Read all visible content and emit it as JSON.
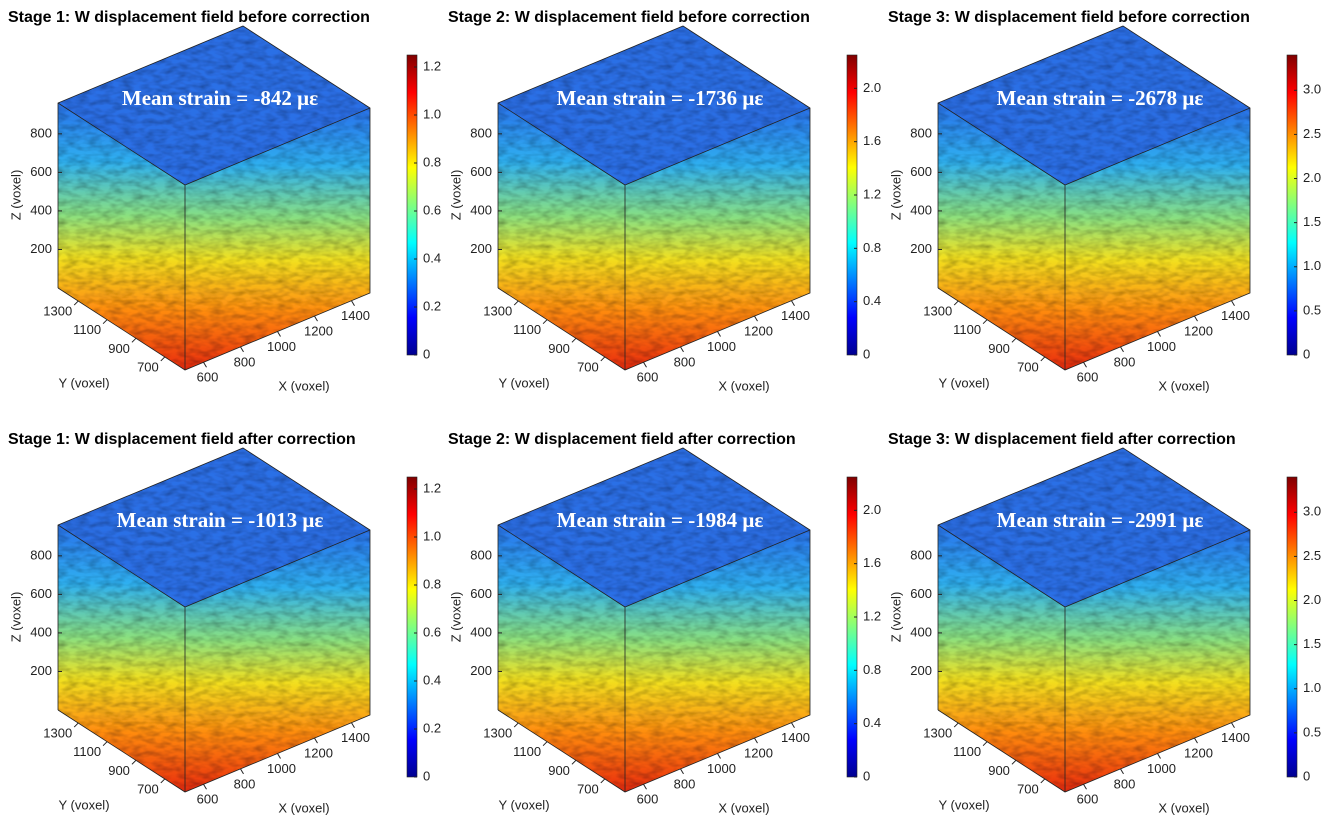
{
  "chart_data": [
    {
      "type": "volume",
      "title": "Stage 1: W displacement field before correction",
      "annotation": "Mean strain = -842 με",
      "xlabel": "X (voxel)",
      "ylabel": "Y (voxel)",
      "zlabel": "Z (voxel)",
      "xlim": [
        500,
        1500
      ],
      "xticks": [
        600,
        800,
        1000,
        1200,
        1400
      ],
      "ylim": [
        560,
        1440
      ],
      "yticks": [
        700,
        900,
        1100,
        1300
      ],
      "zlim": [
        0,
        960
      ],
      "zticks": [
        200,
        400,
        600,
        800
      ],
      "colormap": "jet",
      "clim": [
        0,
        1.25
      ],
      "cticks": [
        0,
        0.2,
        0.4,
        0.6,
        0.8,
        {
          "value": 1,
          "label": "1.0"
        },
        1.2
      ]
    },
    {
      "type": "volume",
      "title": "Stage 2: W displacement field before correction",
      "annotation": "Mean strain = -1736 με",
      "xlabel": "X (voxel)",
      "ylabel": "Y (voxel)",
      "zlabel": "Z (voxel)",
      "xlim": [
        500,
        1500
      ],
      "xticks": [
        600,
        800,
        1000,
        1200,
        1400
      ],
      "ylim": [
        560,
        1440
      ],
      "yticks": [
        700,
        900,
        1100,
        1300
      ],
      "zlim": [
        0,
        960
      ],
      "zticks": [
        200,
        400,
        600,
        800
      ],
      "colormap": "jet",
      "clim": [
        0,
        2.25
      ],
      "cticks": [
        0,
        0.4,
        0.8,
        1.2,
        1.6,
        {
          "value": 2,
          "label": "2.0"
        }
      ]
    },
    {
      "type": "volume",
      "title": "Stage 3: W displacement field before correction",
      "annotation": "Mean strain = -2678 με",
      "xlabel": "X (voxel)",
      "ylabel": "Y (voxel)",
      "zlabel": "Z (voxel)",
      "xlim": [
        500,
        1500
      ],
      "xticks": [
        600,
        800,
        1000,
        1200,
        1400
      ],
      "ylim": [
        560,
        1440
      ],
      "yticks": [
        700,
        900,
        1100,
        1300
      ],
      "zlim": [
        0,
        960
      ],
      "zticks": [
        200,
        400,
        600,
        800
      ],
      "colormap": "jet",
      "clim": [
        0,
        3.4
      ],
      "cticks": [
        0,
        0.5,
        {
          "value": 1,
          "label": "1.0"
        },
        1.5,
        {
          "value": 2,
          "label": "2.0"
        },
        2.5,
        {
          "value": 3,
          "label": "3.0"
        }
      ]
    },
    {
      "type": "volume",
      "title": "Stage 1: W displacement field after correction",
      "annotation": "Mean strain = -1013 με",
      "xlabel": "X (voxel)",
      "ylabel": "Y (voxel)",
      "zlabel": "Z (voxel)",
      "xlim": [
        500,
        1500
      ],
      "xticks": [
        600,
        800,
        1000,
        1200,
        1400
      ],
      "ylim": [
        560,
        1440
      ],
      "yticks": [
        700,
        900,
        1100,
        1300
      ],
      "zlim": [
        0,
        960
      ],
      "zticks": [
        200,
        400,
        600,
        800
      ],
      "colormap": "jet",
      "clim": [
        0,
        1.25
      ],
      "cticks": [
        0,
        0.2,
        0.4,
        0.6,
        0.8,
        {
          "value": 1,
          "label": "1.0"
        },
        1.2
      ]
    },
    {
      "type": "volume",
      "title": "Stage 2: W displacement field after correction",
      "annotation": "Mean strain = -1984 με",
      "xlabel": "X (voxel)",
      "ylabel": "Y (voxel)",
      "zlabel": "Z (voxel)",
      "xlim": [
        500,
        1500
      ],
      "xticks": [
        600,
        800,
        1000,
        1200,
        1400
      ],
      "ylim": [
        560,
        1440
      ],
      "yticks": [
        700,
        900,
        1100,
        1300
      ],
      "zlim": [
        0,
        960
      ],
      "zticks": [
        200,
        400,
        600,
        800
      ],
      "colormap": "jet",
      "clim": [
        0,
        2.25
      ],
      "cticks": [
        0,
        0.4,
        0.8,
        1.2,
        1.6,
        {
          "value": 2,
          "label": "2.0"
        }
      ]
    },
    {
      "type": "volume",
      "title": "Stage 3: W displacement field after correction",
      "annotation": "Mean strain = -2991 με",
      "xlabel": "X (voxel)",
      "ylabel": "Y (voxel)",
      "zlabel": "Z (voxel)",
      "xlim": [
        500,
        1500
      ],
      "xticks": [
        600,
        800,
        1000,
        1200,
        1400
      ],
      "ylim": [
        560,
        1440
      ],
      "yticks": [
        700,
        900,
        1100,
        1300
      ],
      "zlim": [
        0,
        960
      ],
      "zticks": [
        200,
        400,
        600,
        800
      ],
      "colormap": "jet",
      "clim": [
        0,
        3.4
      ],
      "cticks": [
        0,
        0.5,
        {
          "value": 1,
          "label": "1.0"
        },
        1.5,
        {
          "value": 2,
          "label": "2.0"
        },
        2.5,
        {
          "value": 3,
          "label": "3.0"
        }
      ]
    }
  ]
}
